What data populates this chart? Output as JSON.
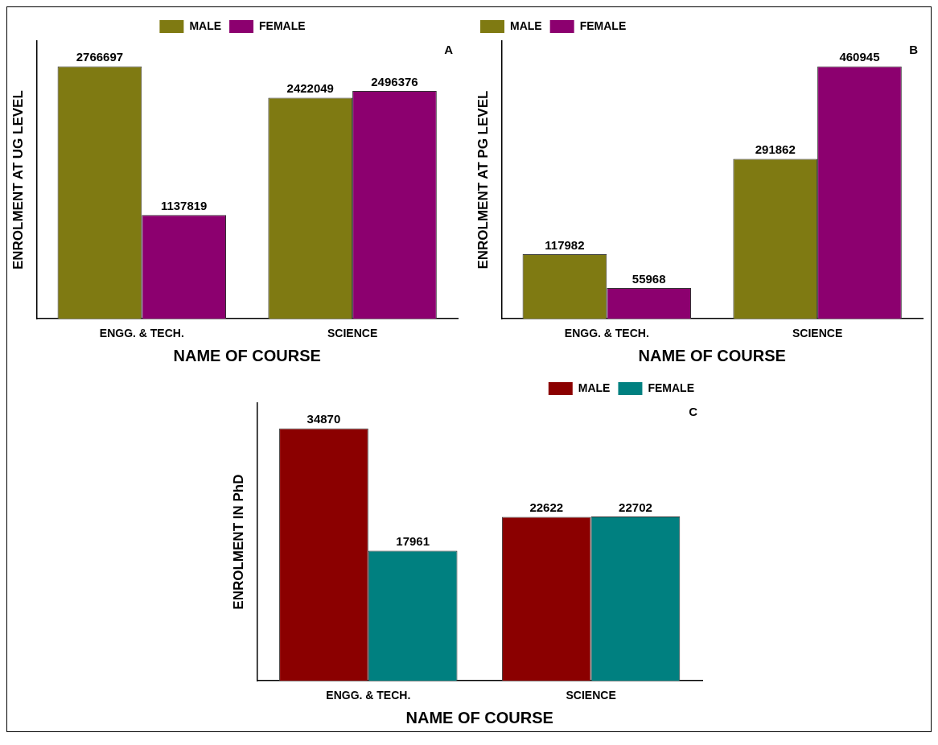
{
  "chart_data": [
    {
      "type": "bar",
      "ylabel": "ENROLMENT AT UG LEVEL",
      "xlabel": "NAME OF COURSE",
      "categories": [
        "ENGG. & TECH.",
        "SCIENCE"
      ],
      "series": [
        {
          "name": "MALE",
          "color": "#7f7a12",
          "values": [
            2766697,
            2422049
          ]
        },
        {
          "name": "FEMALE",
          "color": "#8c006f",
          "values": [
            1137819,
            2496376
          ]
        }
      ],
      "data_labels": true,
      "legend": "top",
      "tick_labels": "x",
      "annotations": [
        "A"
      ]
    },
    {
      "type": "bar",
      "ylabel": "ENROLMENT AT PG LEVEL",
      "xlabel": "NAME OF COURSE",
      "categories": [
        "ENGG. & TECH.",
        "SCIENCE"
      ],
      "series": [
        {
          "name": "MALE",
          "color": "#7f7a12",
          "values": [
            117982,
            291862
          ]
        },
        {
          "name": "FEMALE",
          "color": "#8c006f",
          "values": [
            55968,
            460945
          ]
        }
      ],
      "data_labels": true,
      "legend": "top left",
      "tick_labels": "x",
      "annotations": [
        "B"
      ]
    },
    {
      "type": "bar",
      "ylabel": "ENROLMENT IN PhD",
      "xlabel": "NAME OF COURSE",
      "categories": [
        "ENGG. & TECH.",
        "SCIENCE"
      ],
      "series": [
        {
          "name": "MALE",
          "color": "#8b0000",
          "values": [
            34870,
            22622
          ]
        },
        {
          "name": "FEMALE",
          "color": "#008080",
          "values": [
            17961,
            22702
          ]
        }
      ],
      "data_labels": true,
      "legend": "top right",
      "tick_labels": "x",
      "annotations": [
        "C"
      ]
    }
  ]
}
